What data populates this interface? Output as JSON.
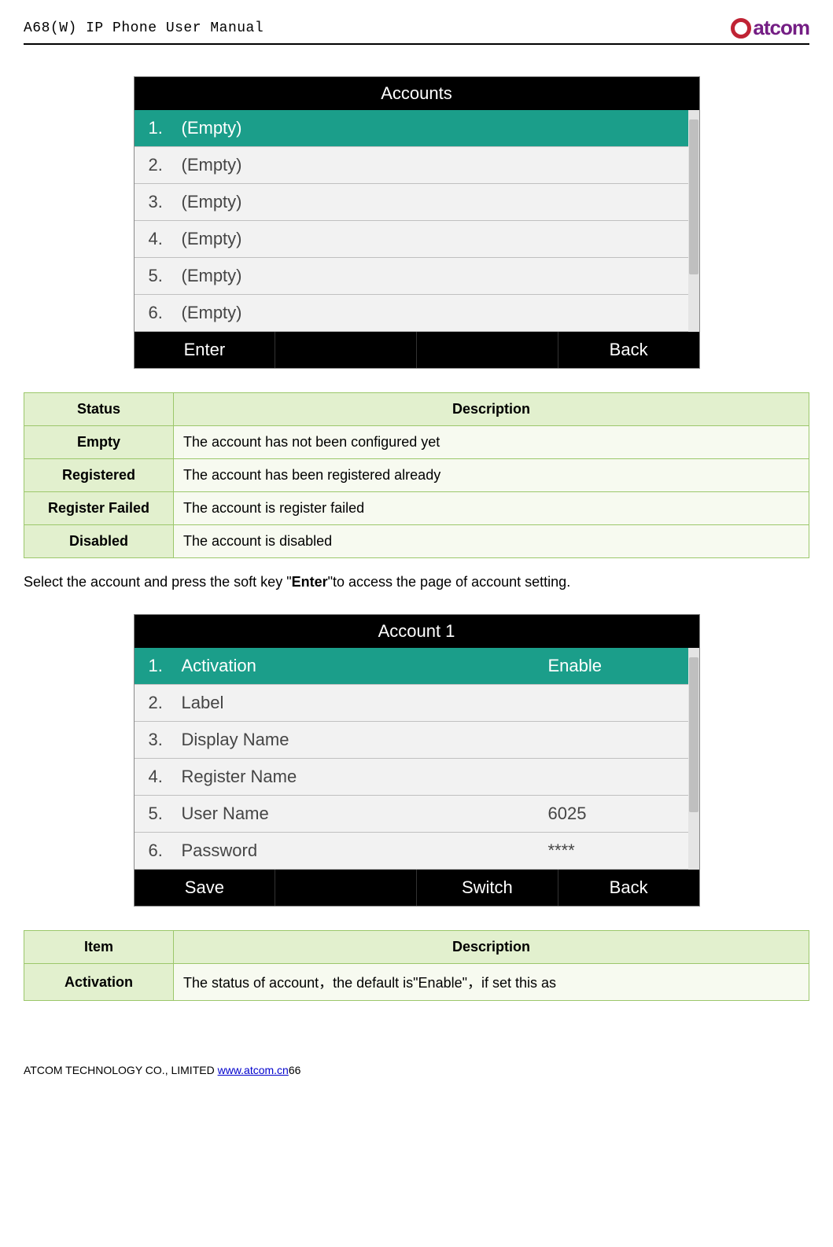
{
  "header": {
    "title": "A68(W) IP Phone User Manual",
    "logo_text": "atcom"
  },
  "screen1": {
    "title": "Accounts",
    "rows": [
      {
        "num": "1.",
        "label": "(Empty)"
      },
      {
        "num": "2.",
        "label": "(Empty)"
      },
      {
        "num": "3.",
        "label": "(Empty)"
      },
      {
        "num": "4.",
        "label": "(Empty)"
      },
      {
        "num": "5.",
        "label": "(Empty)"
      },
      {
        "num": "6.",
        "label": "(Empty)"
      }
    ],
    "softkeys": [
      "Enter",
      "",
      "",
      "Back"
    ]
  },
  "table1": {
    "headers": [
      "Status",
      "Description"
    ],
    "rows": [
      {
        "status": "Empty",
        "desc": "The account has not been configured yet"
      },
      {
        "status": "Registered",
        "desc": "The account has been registered already"
      },
      {
        "status": "Register Failed",
        "desc": "The account is register failed"
      },
      {
        "status": "Disabled",
        "desc": "The account is disabled"
      }
    ]
  },
  "body_text": {
    "pre": "Select the account and press the soft key \"",
    "bold": "Enter",
    "post": "\"to access the page of account setting."
  },
  "screen2": {
    "title": "Account 1",
    "rows": [
      {
        "num": "1.",
        "label": "Activation",
        "val": "Enable"
      },
      {
        "num": "2.",
        "label": "Label",
        "val": ""
      },
      {
        "num": "3.",
        "label": "Display Name",
        "val": ""
      },
      {
        "num": "4.",
        "label": "Register Name",
        "val": ""
      },
      {
        "num": "5.",
        "label": "User Name",
        "val": "6025"
      },
      {
        "num": "6.",
        "label": "Password",
        "val": "****"
      }
    ],
    "softkeys": [
      "Save",
      "",
      "Switch",
      "Back"
    ]
  },
  "table2": {
    "headers": [
      "Item",
      "Description"
    ],
    "rows": [
      {
        "item": "Activation",
        "desc": "The status of account，the default is\"Enable\"，if set this as"
      }
    ]
  },
  "footer": {
    "pre": "ATCOM TECHNOLOGY CO., LIMITED ",
    "link": "www.atcom.cn",
    "page": "66"
  },
  "colors": {
    "teal": "#1b9e8a",
    "table_border": "#9cc76b",
    "table_head_bg": "#e2f0ce",
    "table_cell_bg": "#f7faf0",
    "logo_ring": "#c02334",
    "logo_text": "#741e84"
  }
}
